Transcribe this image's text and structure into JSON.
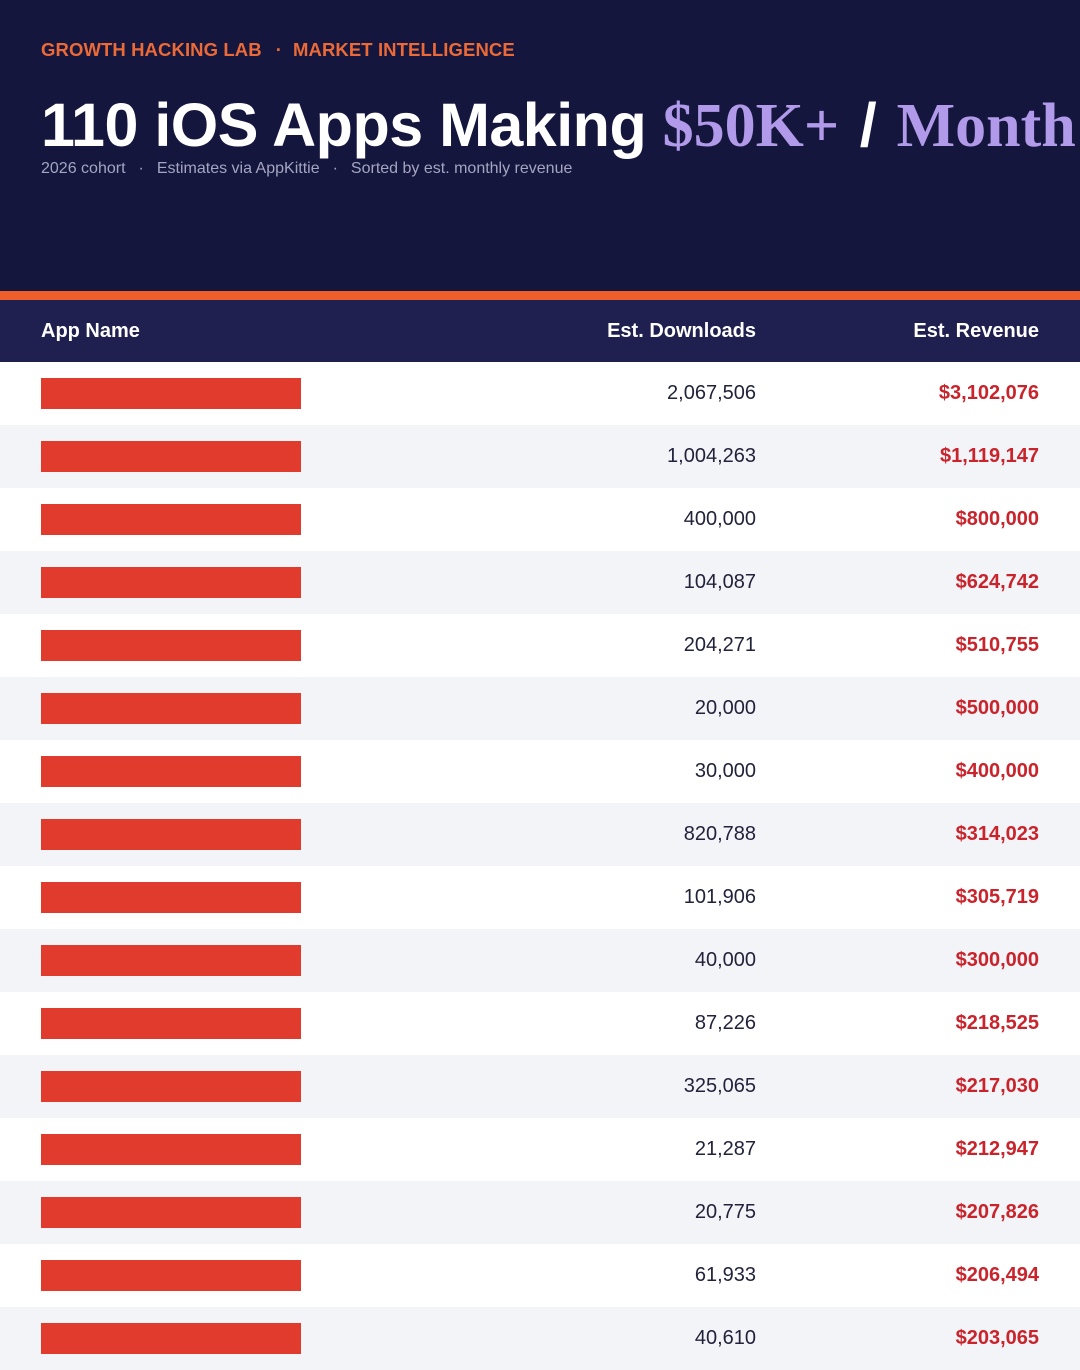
{
  "header": {
    "brand": "GROWTH HACKING LAB",
    "separator": "·",
    "section": "MARKET INTELLIGENCE",
    "title_main": "110 iOS Apps Making",
    "title_amount": "$50K+",
    "title_slash": "/",
    "title_period": "Month",
    "subtitle": {
      "cohort": "2026 cohort",
      "source": "Estimates via AppKittie",
      "sort": "Sorted by est. monthly revenue",
      "sep": "·"
    }
  },
  "colors": {
    "background_dark": "#15163d",
    "accent_orange": "#ee5d2a",
    "accent_purple": "#b09ae9",
    "table_header": "#202050",
    "redacted_bar": "#e13b2e",
    "revenue_text": "#c9232b"
  },
  "table": {
    "columns": [
      "App Name",
      "Est. Downloads",
      "Est. Revenue"
    ],
    "rows": [
      {
        "downloads": "2,067,506",
        "revenue": "$3,102,076"
      },
      {
        "downloads": "1,004,263",
        "revenue": "$1,119,147"
      },
      {
        "downloads": "400,000",
        "revenue": "$800,000"
      },
      {
        "downloads": "104,087",
        "revenue": "$624,742"
      },
      {
        "downloads": "204,271",
        "revenue": "$510,755"
      },
      {
        "downloads": "20,000",
        "revenue": "$500,000"
      },
      {
        "downloads": "30,000",
        "revenue": "$400,000"
      },
      {
        "downloads": "820,788",
        "revenue": "$314,023"
      },
      {
        "downloads": "101,906",
        "revenue": "$305,719"
      },
      {
        "downloads": "40,000",
        "revenue": "$300,000"
      },
      {
        "downloads": "87,226",
        "revenue": "$218,525"
      },
      {
        "downloads": "325,065",
        "revenue": "$217,030"
      },
      {
        "downloads": "21,287",
        "revenue": "$212,947"
      },
      {
        "downloads": "20,775",
        "revenue": "$207,826"
      },
      {
        "downloads": "61,933",
        "revenue": "$206,494"
      },
      {
        "downloads": "40,610",
        "revenue": "$203,065"
      }
    ]
  }
}
